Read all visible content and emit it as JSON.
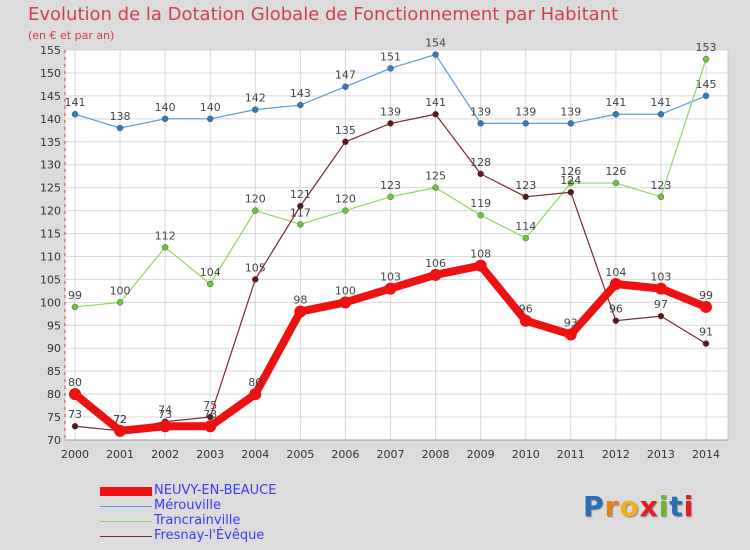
{
  "title": "Evolution de la Dotation Globale de Fonctionnement par Habitant",
  "subtitle": "(en € et par an)",
  "logo": {
    "text": "Proxiti",
    "letter_colors": [
      "#2a6fb5",
      "#e8801a",
      "#f0b020",
      "#e02020",
      "#6ab82e",
      "#2a6fb5",
      "#e02020"
    ]
  },
  "chart_data": {
    "type": "line",
    "x": [
      2000,
      2001,
      2002,
      2003,
      2004,
      2005,
      2006,
      2007,
      2008,
      2009,
      2010,
      2011,
      2012,
      2013,
      2014
    ],
    "ylim": [
      70,
      155
    ],
    "yticks": [
      70,
      75,
      80,
      85,
      90,
      95,
      100,
      105,
      110,
      115,
      120,
      125,
      130,
      135,
      140,
      145,
      150,
      155
    ],
    "grid": true,
    "series": [
      {
        "name": "Mérouville",
        "color": "#5b9bd5",
        "marker": "#2e7bbf",
        "values": [
          141,
          138,
          140,
          140,
          142,
          143,
          147,
          151,
          154,
          139,
          139,
          139,
          141,
          141,
          145
        ]
      },
      {
        "name": "Trancrainville",
        "color": "#8fd85e",
        "marker": "#6cc43a",
        "values": [
          99,
          100,
          112,
          104,
          120,
          117,
          120,
          123,
          125,
          119,
          114,
          126,
          126,
          123,
          153
        ]
      },
      {
        "name": "Fresnay-l'Évêque",
        "color": "#7a2a2a",
        "marker": "#5a1818",
        "values": [
          73,
          72,
          74,
          75,
          105,
          121,
          135,
          139,
          141,
          128,
          123,
          124,
          96,
          97,
          91
        ]
      },
      {
        "name": "NEUVY-EN-BEAUCE",
        "color": "#ee1111",
        "marker": "#ee1111",
        "values": [
          80,
          72,
          73,
          73,
          80,
          98,
          100,
          103,
          106,
          108,
          96,
          93,
          104,
          103,
          99
        ]
      }
    ],
    "legend": [
      "NEUVY-EN-BEAUCE",
      "Mérouville",
      "Trancrainville",
      "Fresnay-l'Évêque"
    ]
  }
}
